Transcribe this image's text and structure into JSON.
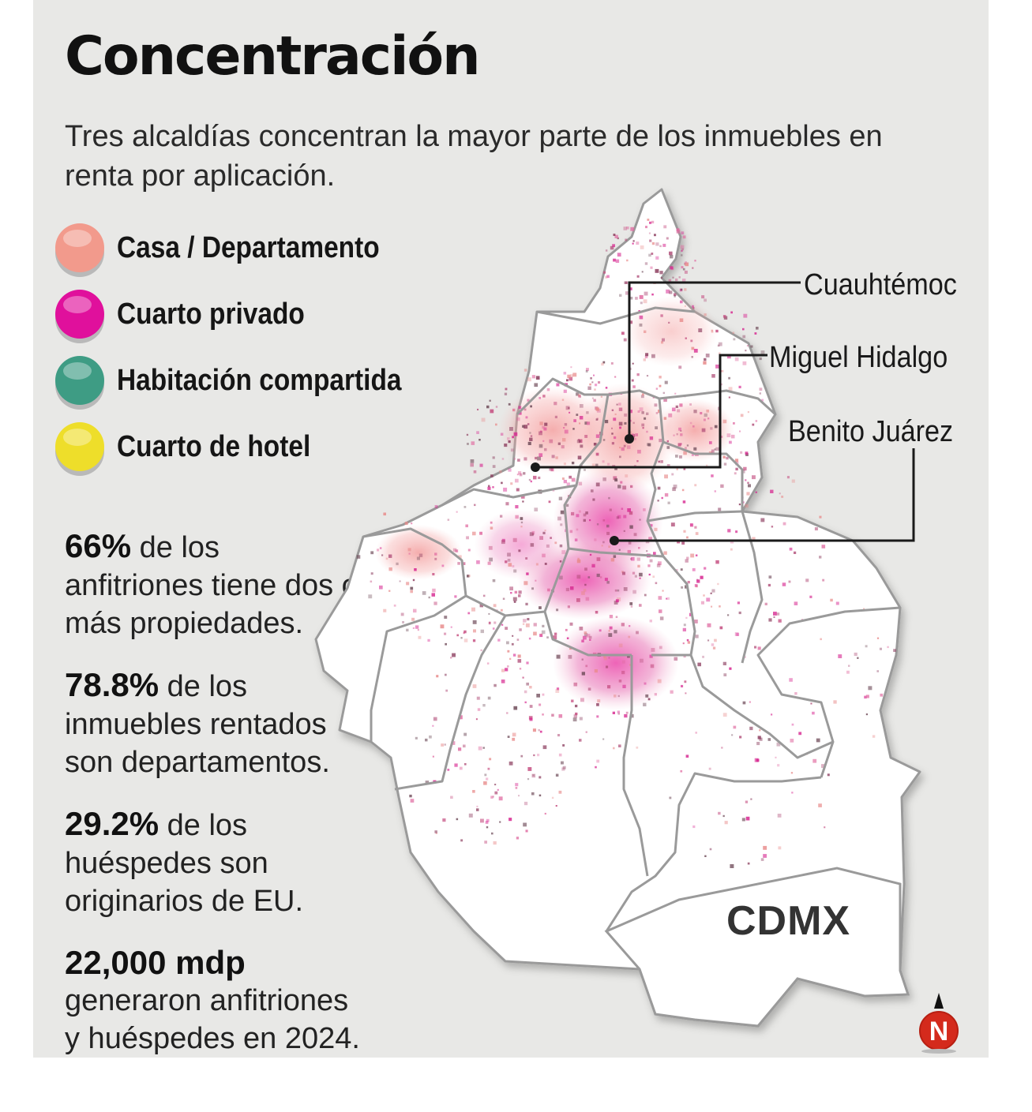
{
  "title": "Concentración",
  "subtitle": "Tres alcaldías concentran la mayor parte de los inmuebles en renta por aplicación.",
  "legend": [
    {
      "label": "Casa / Departamento",
      "color": "#f29a8c"
    },
    {
      "label": "Cuarto privado",
      "color": "#e0109c"
    },
    {
      "label": "Habitación compartida",
      "color": "#3e9c84"
    },
    {
      "label": "Cuarto de hotel",
      "color": "#eede2a"
    }
  ],
  "stats": [
    {
      "value": "66%",
      "text": " de los anfitriones tiene dos o más propiedades."
    },
    {
      "value": "78.8%",
      "text": " de los inmuebles rentados son departamentos."
    },
    {
      "value": "29.2%",
      "text": " de los huéspedes son originarios de EU."
    },
    {
      "value": "22,000 mdp",
      "text": "generaron anfitriones y huéspedes en 2024."
    }
  ],
  "map": {
    "callouts": [
      "Cuauhtémoc",
      "Miguel Hidalgo",
      "Benito Juárez"
    ],
    "region_label": "CDMX",
    "north_label": "N"
  }
}
